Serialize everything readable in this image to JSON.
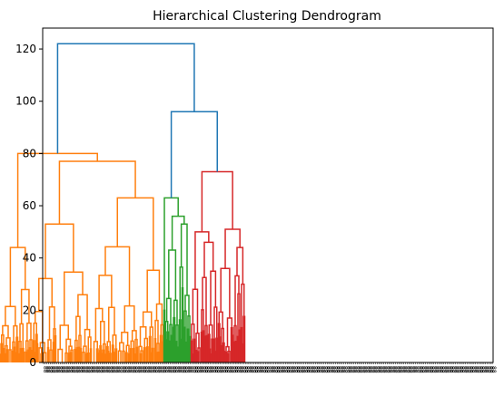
{
  "chart_data": {
    "type": "dendrogram",
    "title": "Hierarchical Clustering Dendrogram",
    "xlabel": "",
    "ylabel": "",
    "ylim": [
      0,
      128
    ],
    "yticks": [
      0,
      20,
      40,
      60,
      80,
      100,
      120
    ],
    "grid": false,
    "legend": "none",
    "colors": {
      "above_threshold": "#1f77b4",
      "cluster_1": "#ff7f0e",
      "cluster_2": "#2ca02c",
      "cluster_3": "#d62728"
    },
    "clusters": [
      {
        "color_key": "cluster_1",
        "leaf_count": 180,
        "top_height": 80,
        "sub_merges": [
          {
            "height": 77,
            "children_heights": [
              53,
              63
            ]
          },
          {
            "height": 44,
            "children_heights": [
              21,
              41
            ]
          },
          {
            "height": 53,
            "children_heights": [
              34,
              42
            ]
          },
          {
            "height": 63,
            "children_heights": [
              36,
              43
            ]
          }
        ]
      },
      {
        "color_key": "cluster_2",
        "leaf_count": 30,
        "top_height": 63,
        "sub_merges": [
          {
            "height": 56,
            "children_heights": [
              43,
              53
            ]
          },
          {
            "height": 43,
            "children_heights": [
              31,
              37
            ]
          },
          {
            "height": 53,
            "children_heights": [
              31,
              27
            ]
          }
        ]
      },
      {
        "color_key": "cluster_3",
        "leaf_count": 60,
        "top_height": 73,
        "sub_merges": [
          {
            "height": 50,
            "children_heights": [
              28,
              46
            ]
          },
          {
            "height": 51,
            "children_heights": [
              36,
              44
            ]
          },
          {
            "height": 46,
            "children_heights": [
              39,
              38
            ]
          }
        ]
      }
    ],
    "top_merges": [
      {
        "height": 96,
        "joins": [
          "cluster_2",
          "cluster_3"
        ]
      },
      {
        "height": 122,
        "joins": [
          "cluster_1",
          "cluster_2+cluster_3"
        ]
      }
    ],
    "leaf_label_glyph": "8"
  }
}
